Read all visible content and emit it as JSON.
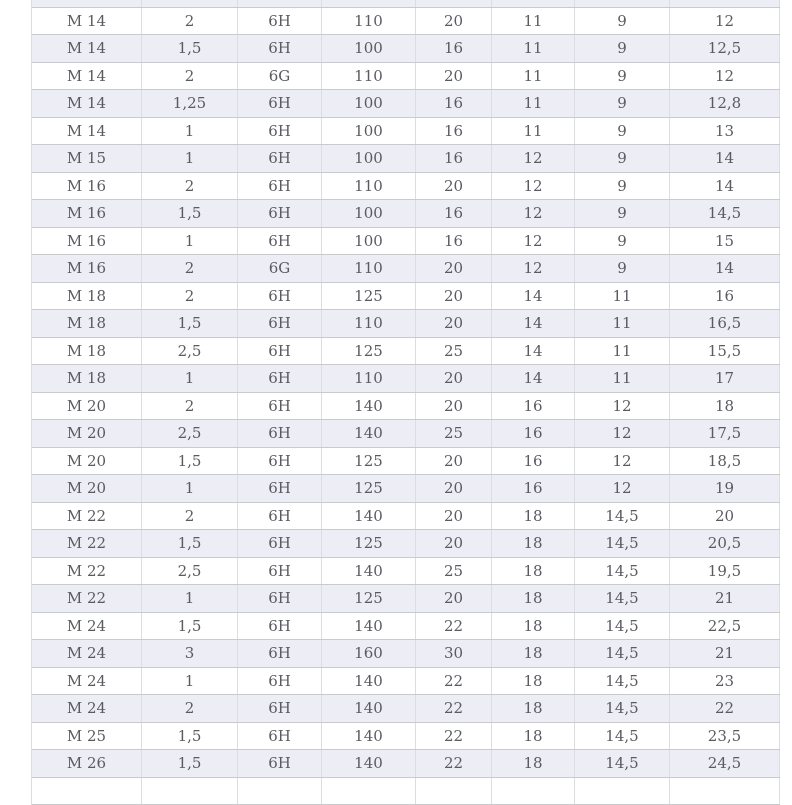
{
  "colors": {
    "row_alt": "#ecedf5",
    "row_base": "#ffffff",
    "border_vertical": "#dcdde1",
    "border_horizontal": "#c9cacd",
    "text": "#5a5b61",
    "page_bg": "#ffffff"
  },
  "table": {
    "rows": [
      {
        "cells": [
          "",
          "",
          "",
          "",
          "",
          "",
          "",
          ""
        ]
      },
      {
        "cells": [
          "M 14",
          "2",
          "6H",
          "110",
          "20",
          "11",
          "9",
          "12"
        ]
      },
      {
        "cells": [
          "M 14",
          "1,5",
          "6H",
          "100",
          "16",
          "11",
          "9",
          "12,5"
        ]
      },
      {
        "cells": [
          "M 14",
          "2",
          "6G",
          "110",
          "20",
          "11",
          "9",
          "12"
        ]
      },
      {
        "cells": [
          "M 14",
          "1,25",
          "6H",
          "100",
          "16",
          "11",
          "9",
          "12,8"
        ]
      },
      {
        "cells": [
          "M 14",
          "1",
          "6H",
          "100",
          "16",
          "11",
          "9",
          "13"
        ]
      },
      {
        "cells": [
          "M 15",
          "1",
          "6H",
          "100",
          "16",
          "12",
          "9",
          "14"
        ]
      },
      {
        "cells": [
          "M 16",
          "2",
          "6H",
          "110",
          "20",
          "12",
          "9",
          "14"
        ]
      },
      {
        "cells": [
          "M 16",
          "1,5",
          "6H",
          "100",
          "16",
          "12",
          "9",
          "14,5"
        ]
      },
      {
        "cells": [
          "M 16",
          "1",
          "6H",
          "100",
          "16",
          "12",
          "9",
          "15"
        ]
      },
      {
        "cells": [
          "M 16",
          "2",
          "6G",
          "110",
          "20",
          "12",
          "9",
          "14"
        ]
      },
      {
        "cells": [
          "M 18",
          "2",
          "6H",
          "125",
          "20",
          "14",
          "11",
          "16"
        ]
      },
      {
        "cells": [
          "M 18",
          "1,5",
          "6H",
          "110",
          "20",
          "14",
          "11",
          "16,5"
        ]
      },
      {
        "cells": [
          "M 18",
          "2,5",
          "6H",
          "125",
          "25",
          "14",
          "11",
          "15,5"
        ]
      },
      {
        "cells": [
          "M 18",
          "1",
          "6H",
          "110",
          "20",
          "14",
          "11",
          "17"
        ]
      },
      {
        "cells": [
          "M 20",
          "2",
          "6H",
          "140",
          "20",
          "16",
          "12",
          "18"
        ]
      },
      {
        "cells": [
          "M 20",
          "2,5",
          "6H",
          "140",
          "25",
          "16",
          "12",
          "17,5"
        ]
      },
      {
        "cells": [
          "M 20",
          "1,5",
          "6H",
          "125",
          "20",
          "16",
          "12",
          "18,5"
        ]
      },
      {
        "cells": [
          "M 20",
          "1",
          "6H",
          "125",
          "20",
          "16",
          "12",
          "19"
        ]
      },
      {
        "cells": [
          "M 22",
          "2",
          "6H",
          "140",
          "20",
          "18",
          "14,5",
          "20"
        ]
      },
      {
        "cells": [
          "M 22",
          "1,5",
          "6H",
          "125",
          "20",
          "18",
          "14,5",
          "20,5"
        ]
      },
      {
        "cells": [
          "M 22",
          "2,5",
          "6H",
          "140",
          "25",
          "18",
          "14,5",
          "19,5"
        ]
      },
      {
        "cells": [
          "M 22",
          "1",
          "6H",
          "125",
          "20",
          "18",
          "14,5",
          "21"
        ]
      },
      {
        "cells": [
          "M 24",
          "1,5",
          "6H",
          "140",
          "22",
          "18",
          "14,5",
          "22,5"
        ]
      },
      {
        "cells": [
          "M 24",
          "3",
          "6H",
          "160",
          "30",
          "18",
          "14,5",
          "21"
        ]
      },
      {
        "cells": [
          "M 24",
          "1",
          "6H",
          "140",
          "22",
          "18",
          "14,5",
          "23"
        ]
      },
      {
        "cells": [
          "M 24",
          "2",
          "6H",
          "140",
          "22",
          "18",
          "14,5",
          "22"
        ]
      },
      {
        "cells": [
          "M 25",
          "1,5",
          "6H",
          "140",
          "22",
          "18",
          "14,5",
          "23,5"
        ]
      },
      {
        "cells": [
          "M 26",
          "1,5",
          "6H",
          "140",
          "22",
          "18",
          "14,5",
          "24,5"
        ]
      },
      {
        "cells": [
          "",
          "",
          "",
          "",
          "",
          "",
          "",
          ""
        ]
      }
    ]
  }
}
